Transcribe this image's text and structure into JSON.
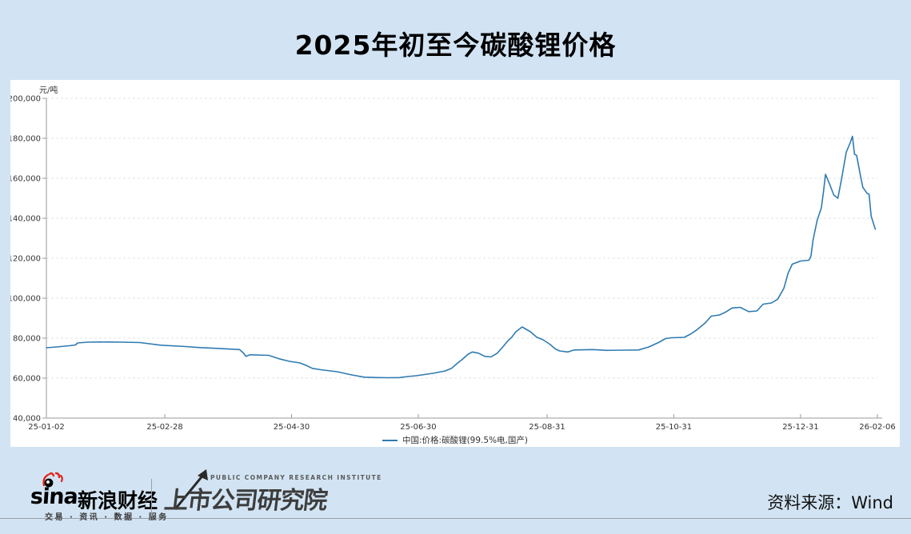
{
  "title": "2025年初至今碳酸锂价格",
  "source_note": "资料来源：Wind",
  "footer": {
    "sina_wordmark": "sina",
    "sina_brand": "新浪财经",
    "sina_tagline": "交易 · 资讯 · 数据 · 服务",
    "institute_en": "PUBLIC COMPANY RESEARCH INSTITUTE",
    "institute_cn": "上市公司研究院"
  },
  "chart_data": {
    "type": "line",
    "title": "2025年初至今碳酸锂价格",
    "unit_label": "元/吨",
    "legend_label": "中国:价格:碳酸锂(99.5%电,国产)",
    "line_color": "#2e7bb1",
    "grid": "horizontal-dashed",
    "legend_position": "bottom-center",
    "ylabel": "元/吨",
    "ylim": [
      40000,
      200000
    ],
    "ytick_step": 20000,
    "x_range_days": [
      0,
      400
    ],
    "xticks": [
      {
        "label": "25-01-02",
        "day": 0
      },
      {
        "label": "25-02-28",
        "day": 57
      },
      {
        "label": "25-04-30",
        "day": 118
      },
      {
        "label": "25-06-30",
        "day": 179
      },
      {
        "label": "25-08-31",
        "day": 241
      },
      {
        "label": "25-10-31",
        "day": 302
      },
      {
        "label": "25-12-31",
        "day": 363
      },
      {
        "label": "26-02-06",
        "day": 400
      }
    ],
    "series": [
      {
        "name": "中国:价格:碳酸锂(99.5%电,国产)",
        "points": [
          [
            0,
            75200
          ],
          [
            5,
            75600
          ],
          [
            11,
            76200
          ],
          [
            14,
            76600
          ],
          [
            15,
            77600
          ],
          [
            20,
            78000
          ],
          [
            30,
            78100
          ],
          [
            36,
            78000
          ],
          [
            45,
            77800
          ],
          [
            55,
            76500
          ],
          [
            67,
            75800
          ],
          [
            74,
            75300
          ],
          [
            86,
            74700
          ],
          [
            93,
            74300
          ],
          [
            95,
            72400
          ],
          [
            96,
            70900
          ],
          [
            98,
            71700
          ],
          [
            107,
            71400
          ],
          [
            112,
            69700
          ],
          [
            117,
            68400
          ],
          [
            122,
            67600
          ],
          [
            125,
            66400
          ],
          [
            128,
            64900
          ],
          [
            132,
            64200
          ],
          [
            140,
            63200
          ],
          [
            147,
            61600
          ],
          [
            153,
            60500
          ],
          [
            159,
            60300
          ],
          [
            165,
            60200
          ],
          [
            170,
            60300
          ],
          [
            174,
            60800
          ],
          [
            178,
            61200
          ],
          [
            186,
            62400
          ],
          [
            192,
            63600
          ],
          [
            195,
            64900
          ],
          [
            198,
            67600
          ],
          [
            200,
            69200
          ],
          [
            203,
            72000
          ],
          [
            205,
            73100
          ],
          [
            208,
            72500
          ],
          [
            211,
            70900
          ],
          [
            214,
            70600
          ],
          [
            217,
            72500
          ],
          [
            220,
            76000
          ],
          [
            222,
            78500
          ],
          [
            224,
            80500
          ],
          [
            226,
            83200
          ],
          [
            229,
            85600
          ],
          [
            233,
            83200
          ],
          [
            236,
            80500
          ],
          [
            239,
            79200
          ],
          [
            242,
            77200
          ],
          [
            245,
            74600
          ],
          [
            247,
            73600
          ],
          [
            251,
            73100
          ],
          [
            254,
            74100
          ],
          [
            263,
            74300
          ],
          [
            270,
            73900
          ],
          [
            278,
            74000
          ],
          [
            285,
            74100
          ],
          [
            290,
            75600
          ],
          [
            295,
            78000
          ],
          [
            298,
            79800
          ],
          [
            301,
            80200
          ],
          [
            307,
            80400
          ],
          [
            310,
            82000
          ],
          [
            313,
            84100
          ],
          [
            317,
            87500
          ],
          [
            320,
            91000
          ],
          [
            324,
            91600
          ],
          [
            327,
            93100
          ],
          [
            330,
            95100
          ],
          [
            334,
            95400
          ],
          [
            338,
            93300
          ],
          [
            342,
            93600
          ],
          [
            345,
            97000
          ],
          [
            349,
            97600
          ],
          [
            352,
            99500
          ],
          [
            355,
            105000
          ],
          [
            357,
            112500
          ],
          [
            359,
            117000
          ],
          [
            363,
            118600
          ],
          [
            367,
            119000
          ],
          [
            368,
            121000
          ],
          [
            369,
            129000
          ],
          [
            371,
            139000
          ],
          [
            373,
            145200
          ],
          [
            374,
            153000
          ],
          [
            375,
            162000
          ],
          [
            377,
            157000
          ],
          [
            379,
            151600
          ],
          [
            381,
            150000
          ],
          [
            383,
            161000
          ],
          [
            385,
            173000
          ],
          [
            387,
            178000
          ],
          [
            388,
            181000
          ],
          [
            389,
            172000
          ],
          [
            390,
            171500
          ],
          [
            392,
            160500
          ],
          [
            393,
            155500
          ],
          [
            395,
            152500
          ],
          [
            396,
            152000
          ],
          [
            397,
            141000
          ],
          [
            399,
            134500
          ]
        ]
      }
    ]
  }
}
